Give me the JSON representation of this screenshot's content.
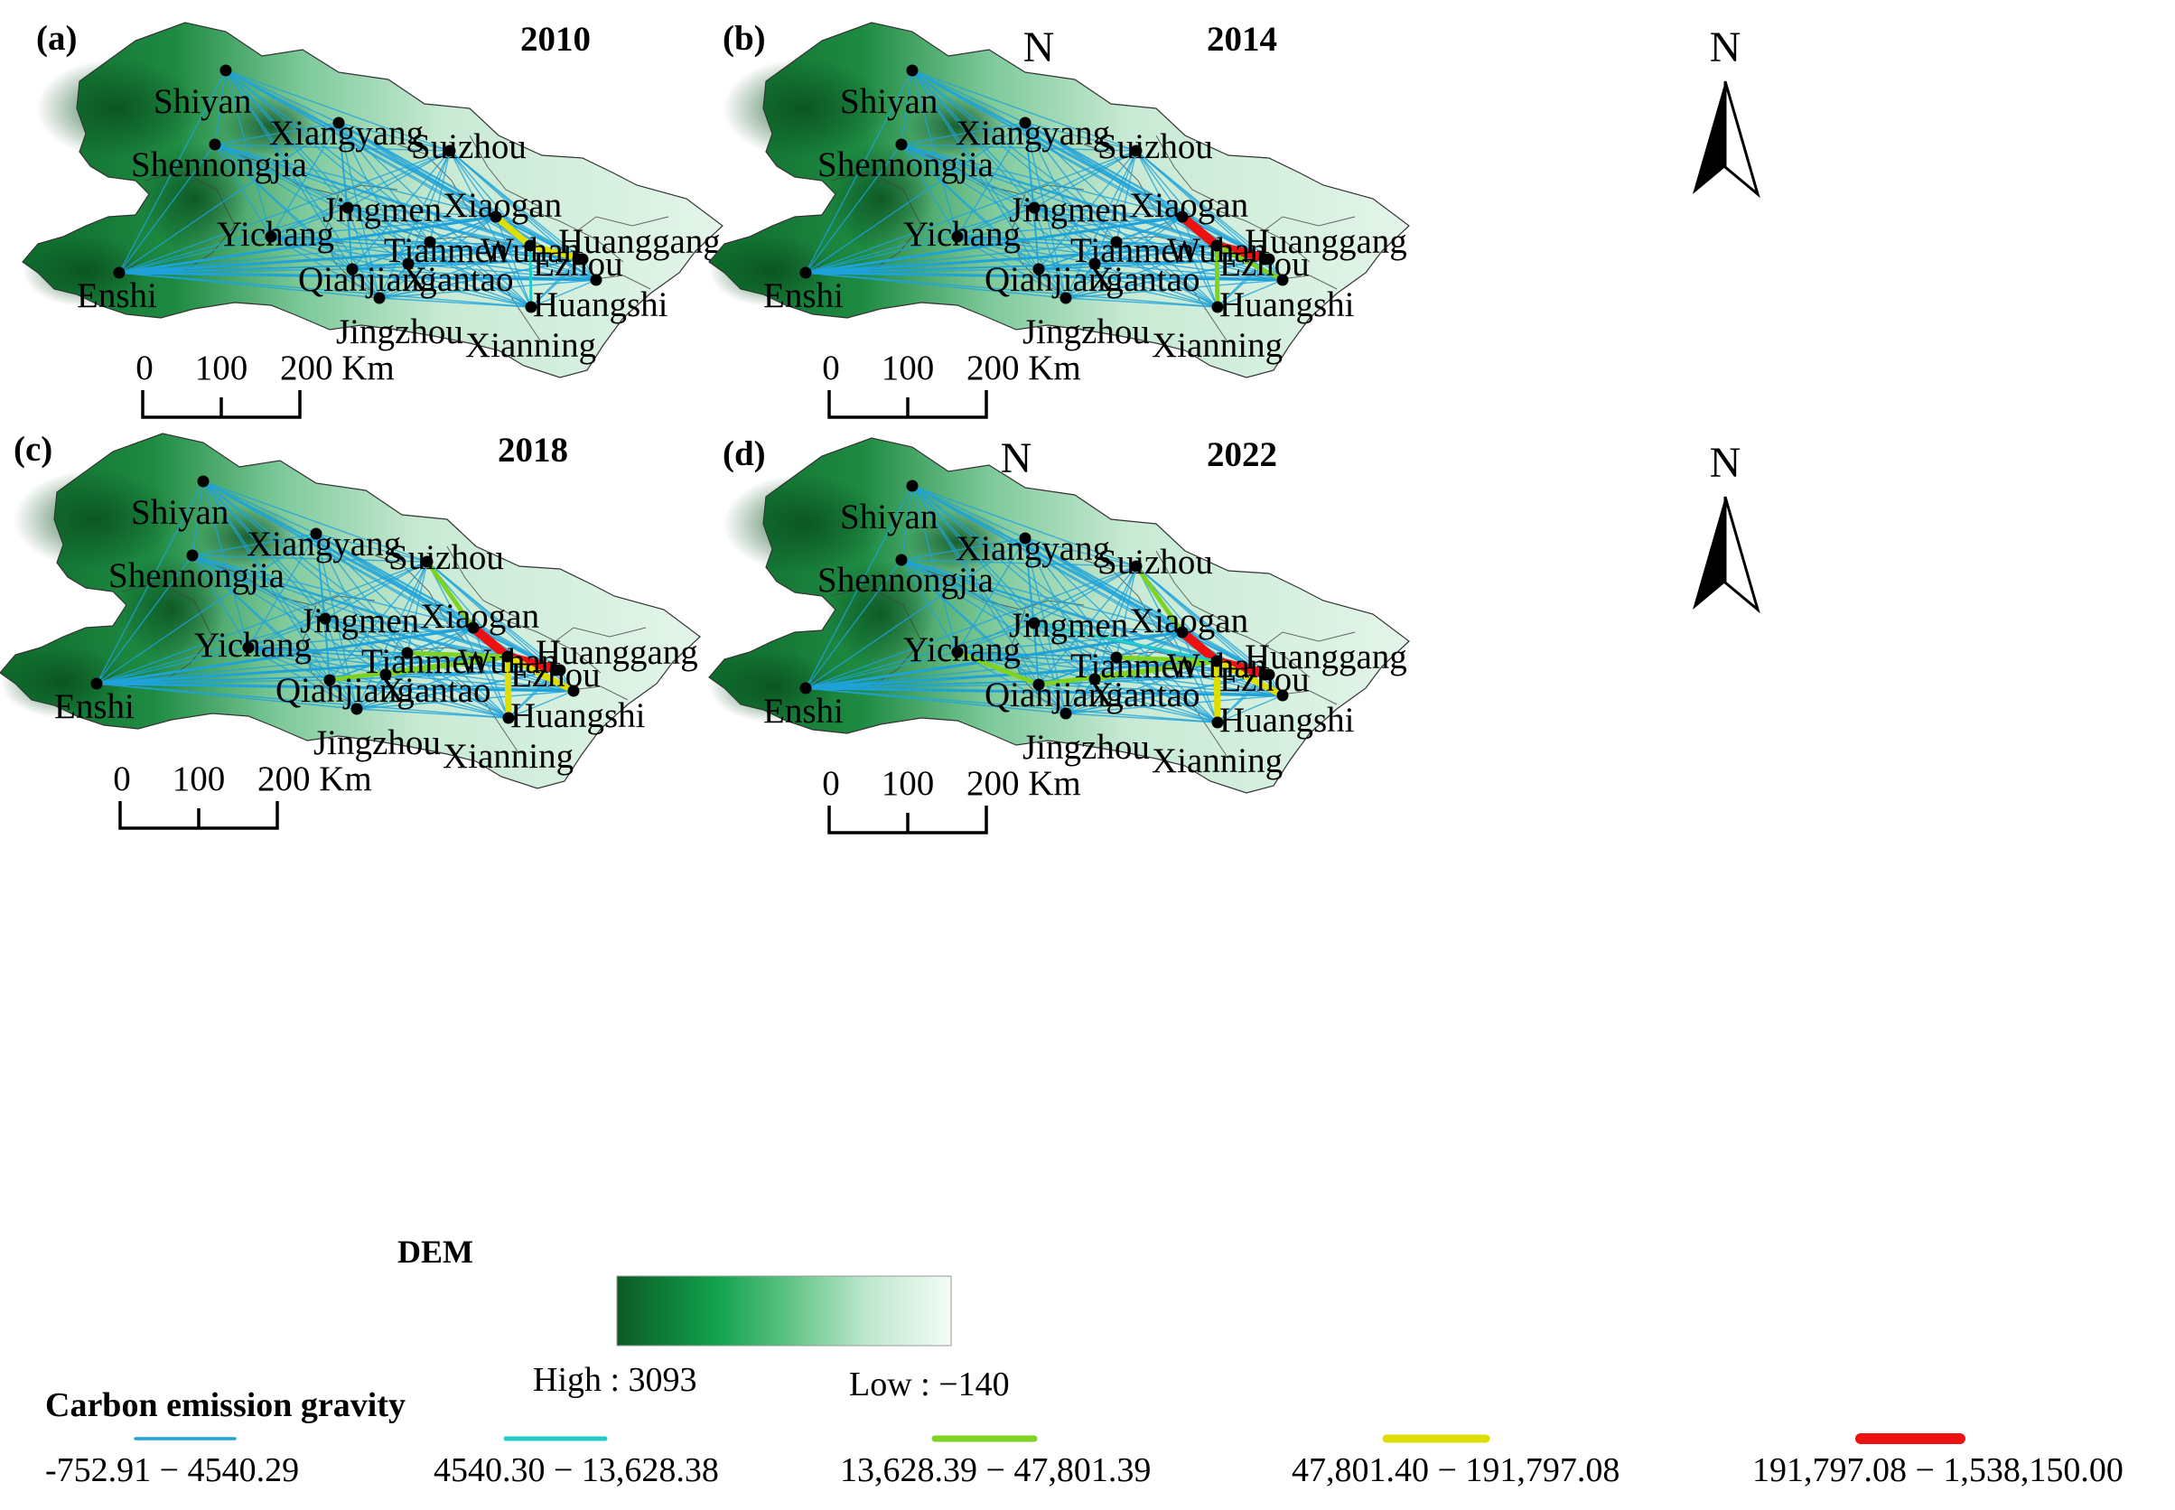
{
  "panels": [
    {
      "id": "a",
      "label": "(a)",
      "year": "2010"
    },
    {
      "id": "b",
      "label": "(b)",
      "year": "2014"
    },
    {
      "id": "c",
      "label": "(c)",
      "year": "2018"
    },
    {
      "id": "d",
      "label": "(d)",
      "year": "2022"
    }
  ],
  "north_label": "N",
  "scale_bar": {
    "tick0": "0",
    "tick1": "100",
    "tick2": "200 Km"
  },
  "cities": [
    "Shiyan",
    "Xiangyang",
    "Suizhou",
    "Shennongjia",
    "Jingmen",
    "Xiaogan",
    "Yichang",
    "Tianmen",
    "Wuhan",
    "Huanggang",
    "Ezhou",
    "Enshi",
    "Qianjiang",
    "Xiantao",
    "Huangshi",
    "Jingzhou",
    "Xianning"
  ],
  "dem_legend": {
    "title": "DEM",
    "high_label": "High : 3093",
    "low_label": "Low : −140",
    "colors": [
      "#0b5a24",
      "#12a24e",
      "#61c486",
      "#bfe8cf",
      "#f4fcf6"
    ]
  },
  "gravity_legend": {
    "title": "Carbon emission gravity",
    "classes": [
      {
        "label": "-752.91 − 4540.29",
        "color": "#1fa2d9"
      },
      {
        "label": "4540.30 − 13,628.38",
        "color": "#22cbc6"
      },
      {
        "label": "13,628.39 − 47,801.39",
        "color": "#7ed321"
      },
      {
        "label": "47,801.40 − 191,797.08",
        "color": "#dede00"
      },
      {
        "label": "191,797.08 − 1,538,150.00",
        "color": "#ee1111"
      }
    ]
  },
  "strong_links": {
    "2010": [
      {
        "from": "Xiaogan",
        "to": "Wuhan",
        "class": 3
      },
      {
        "from": "Wuhan",
        "to": "Ezhou",
        "class": 3
      },
      {
        "from": "Wuhan",
        "to": "Xianning",
        "class": 1
      }
    ],
    "2014": [
      {
        "from": "Xiaogan",
        "to": "Wuhan",
        "class": 4
      },
      {
        "from": "Wuhan",
        "to": "Ezhou",
        "class": 4
      },
      {
        "from": "Wuhan",
        "to": "Xianning",
        "class": 2
      },
      {
        "from": "Wuhan",
        "to": "Huangshi",
        "class": 2
      }
    ],
    "2018": [
      {
        "from": "Xiaogan",
        "to": "Wuhan",
        "class": 4
      },
      {
        "from": "Wuhan",
        "to": "Ezhou",
        "class": 4
      },
      {
        "from": "Wuhan",
        "to": "Xianning",
        "class": 3
      },
      {
        "from": "Wuhan",
        "to": "Huangshi",
        "class": 3
      },
      {
        "from": "Suizhou",
        "to": "Xiaogan",
        "class": 2
      },
      {
        "from": "Qianjiang",
        "to": "Wuhan",
        "class": 2
      },
      {
        "from": "Tianmen",
        "to": "Wuhan",
        "class": 2
      },
      {
        "from": "Xiantao",
        "to": "Wuhan",
        "class": 2
      }
    ],
    "2022": [
      {
        "from": "Xiaogan",
        "to": "Wuhan",
        "class": 4
      },
      {
        "from": "Wuhan",
        "to": "Ezhou",
        "class": 4
      },
      {
        "from": "Wuhan",
        "to": "Xianning",
        "class": 3
      },
      {
        "from": "Wuhan",
        "to": "Huangshi",
        "class": 3
      },
      {
        "from": "Suizhou",
        "to": "Xiaogan",
        "class": 2
      },
      {
        "from": "Qianjiang",
        "to": "Wuhan",
        "class": 2
      },
      {
        "from": "Tianmen",
        "to": "Wuhan",
        "class": 2
      },
      {
        "from": "Xiantao",
        "to": "Wuhan",
        "class": 2
      },
      {
        "from": "Yichang",
        "to": "Qianjiang",
        "class": 2
      },
      {
        "from": "Jingmen",
        "to": "Wuhan",
        "class": 1
      }
    ]
  }
}
